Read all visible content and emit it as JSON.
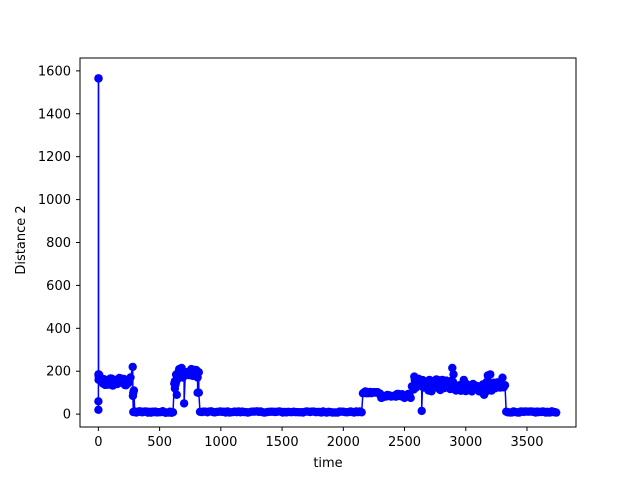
{
  "chart_data": {
    "type": "line",
    "title": "",
    "xlabel": "time",
    "ylabel": "Distance 2",
    "xlim": [
      -150,
      3900
    ],
    "ylim": [
      -60,
      1660
    ],
    "xticks": [
      0,
      500,
      1000,
      1500,
      2000,
      2500,
      3000,
      3500
    ],
    "yticks": [
      0,
      200,
      400,
      600,
      800,
      1000,
      1200,
      1400,
      1600
    ],
    "grid": false,
    "legend": "none",
    "series": [
      {
        "color": "#0000ff",
        "marker": "circle",
        "segments": [
          {
            "from": 0,
            "to": 2,
            "level": 1565,
            "jitter": 0,
            "step": 2
          },
          {
            "from": 3,
            "to": 8,
            "level": 170,
            "jitter": 15,
            "step": 1
          },
          {
            "from": 10,
            "to": 270,
            "level": 150,
            "jitter": 22,
            "step": 9
          },
          {
            "from": 285,
            "to": 615,
            "level": 10,
            "jitter": 4,
            "step": 12
          },
          {
            "from": 620,
            "to": 640,
            "level": 160,
            "jitter": 40,
            "step": 5
          },
          {
            "from": 650,
            "to": 820,
            "level": 190,
            "jitter": 20,
            "step": 10
          },
          {
            "from": 830,
            "to": 2160,
            "level": 10,
            "jitter": 3,
            "step": 15
          },
          {
            "from": 2160,
            "to": 2300,
            "level": 100,
            "jitter": 6,
            "step": 10
          },
          {
            "from": 2300,
            "to": 2550,
            "level": 85,
            "jitter": 10,
            "step": 10
          },
          {
            "from": 2560,
            "to": 3000,
            "level": 135,
            "jitter": 30,
            "step": 8
          },
          {
            "from": 3000,
            "to": 3320,
            "level": 125,
            "jitter": 25,
            "step": 10
          },
          {
            "from": 3330,
            "to": 3740,
            "level": 10,
            "jitter": 3,
            "step": 12
          }
        ],
        "extra_points": [
          [
            0,
            20
          ],
          [
            0,
            60
          ],
          [
            0,
            185
          ],
          [
            2,
            160
          ],
          [
            280,
            220
          ],
          [
            282,
            85
          ],
          [
            285,
            100
          ],
          [
            290,
            110
          ],
          [
            625,
            120
          ],
          [
            635,
            150
          ],
          [
            640,
            90
          ],
          [
            700,
            50
          ],
          [
            660,
            210
          ],
          [
            680,
            215
          ],
          [
            760,
            210
          ],
          [
            800,
            205
          ],
          [
            810,
            100
          ],
          [
            820,
            100
          ],
          [
            2640,
            15
          ],
          [
            2580,
            175
          ],
          [
            2890,
            215
          ],
          [
            2900,
            185
          ],
          [
            3150,
            90
          ],
          [
            3180,
            180
          ],
          [
            3200,
            185
          ],
          [
            3300,
            170
          ]
        ]
      }
    ]
  }
}
